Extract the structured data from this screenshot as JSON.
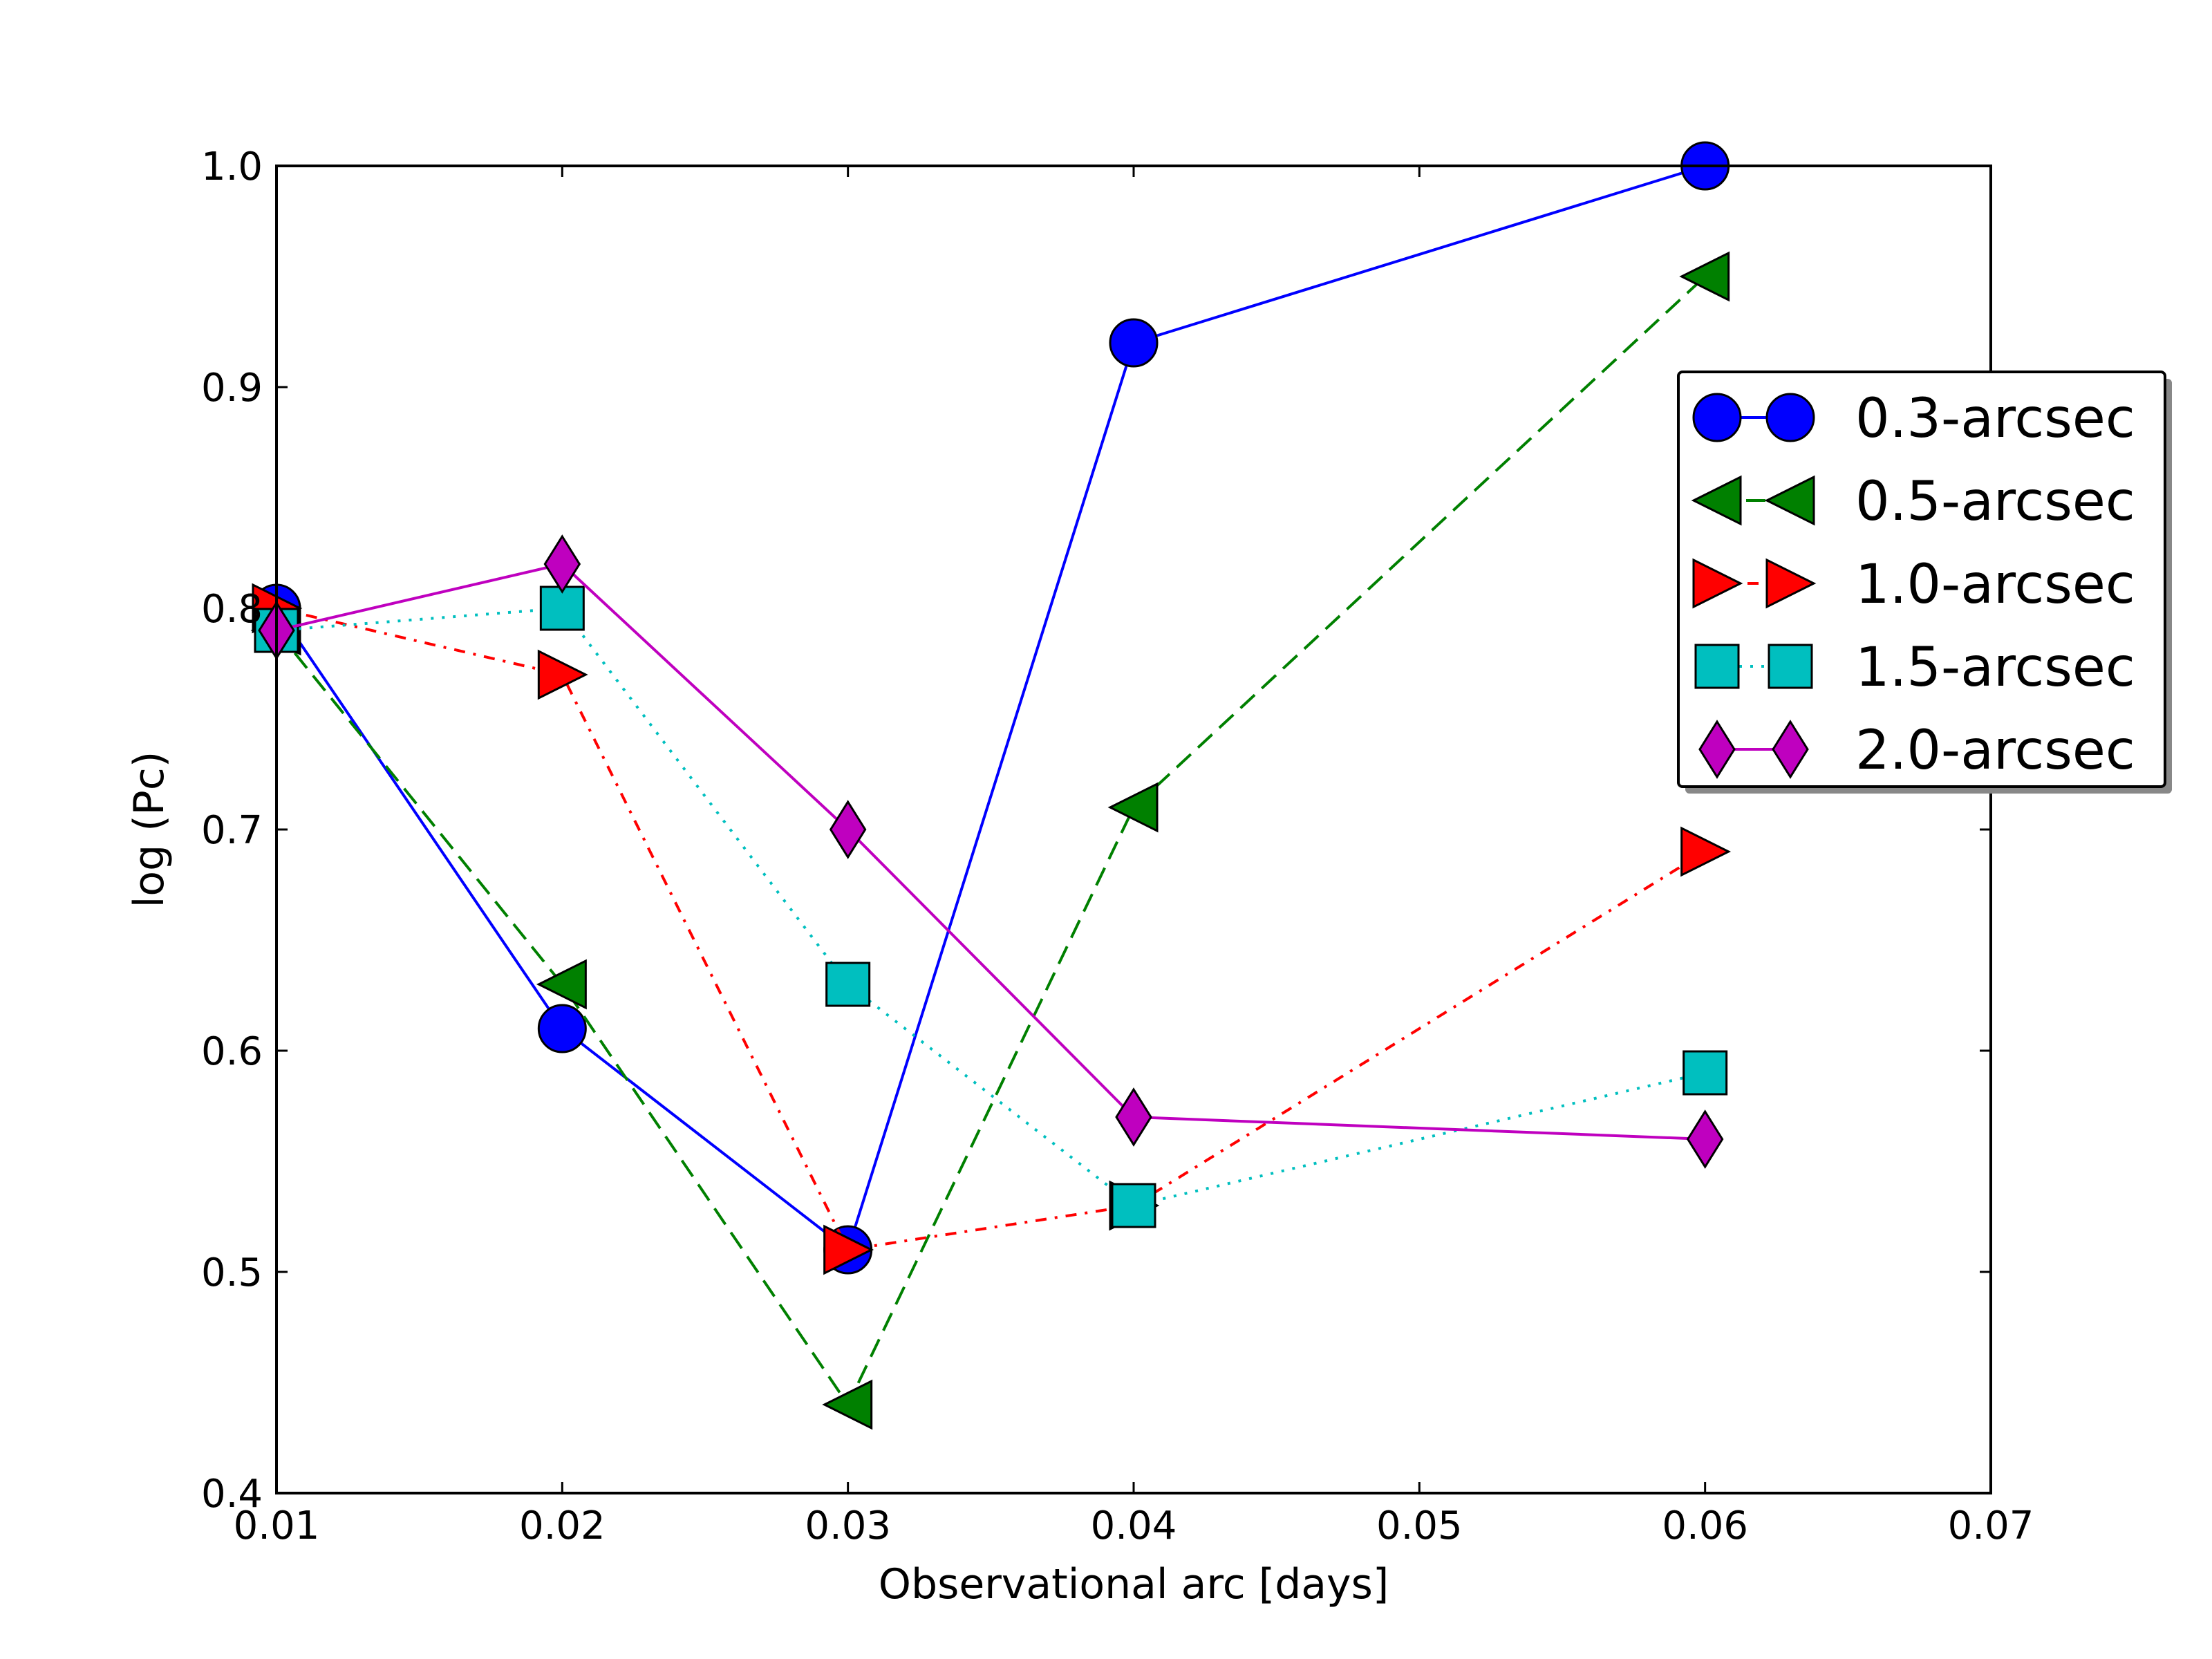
{
  "chart_data": {
    "type": "line",
    "title": "",
    "xlabel": "Observational arc [days]",
    "ylabel": "log (Pc)",
    "xlim": [
      0.01,
      0.07
    ],
    "ylim": [
      0.4,
      1.0
    ],
    "xticks": [
      {
        "value": 0.01,
        "label": "0.01"
      },
      {
        "value": 0.02,
        "label": "0.02"
      },
      {
        "value": 0.03,
        "label": "0.03"
      },
      {
        "value": 0.04,
        "label": "0.04"
      },
      {
        "value": 0.05,
        "label": "0.05"
      },
      {
        "value": 0.06,
        "label": "0.06"
      },
      {
        "value": 0.07,
        "label": "0.07"
      }
    ],
    "yticks": [
      {
        "value": 0.4,
        "label": "0.4"
      },
      {
        "value": 0.5,
        "label": "0.5"
      },
      {
        "value": 0.6,
        "label": "0.6"
      },
      {
        "value": 0.7,
        "label": "0.7"
      },
      {
        "value": 0.8,
        "label": "0.8"
      },
      {
        "value": 0.9,
        "label": "0.9"
      },
      {
        "value": 1.0,
        "label": "1.0"
      }
    ],
    "grid": false,
    "legend_position": "right",
    "x": [
      0.01,
      0.02,
      0.03,
      0.04,
      0.06
    ],
    "series": [
      {
        "name": "0.3-arcsec",
        "values": [
          0.8,
          0.61,
          0.51,
          0.92,
          1.0
        ],
        "color": "#0000ff",
        "line_style": "solid",
        "marker": "circle"
      },
      {
        "name": "0.5-arcsec",
        "values": [
          0.79,
          0.63,
          0.44,
          0.71,
          0.95
        ],
        "color": "#008000",
        "line_style": "dashed",
        "marker": "triangle-left"
      },
      {
        "name": "1.0-arcsec",
        "values": [
          0.8,
          0.77,
          0.51,
          0.53,
          0.69
        ],
        "color": "#ff0000",
        "line_style": "dashdot",
        "marker": "triangle-right"
      },
      {
        "name": "1.5-arcsec",
        "values": [
          0.79,
          0.8,
          0.63,
          0.53,
          0.59
        ],
        "color": "#00bfbf",
        "line_style": "dotted",
        "marker": "square"
      },
      {
        "name": "2.0-arcsec",
        "values": [
          0.79,
          0.82,
          0.7,
          0.57,
          0.56
        ],
        "color": "#bf00bf",
        "line_style": "solid",
        "marker": "diamond"
      }
    ]
  }
}
